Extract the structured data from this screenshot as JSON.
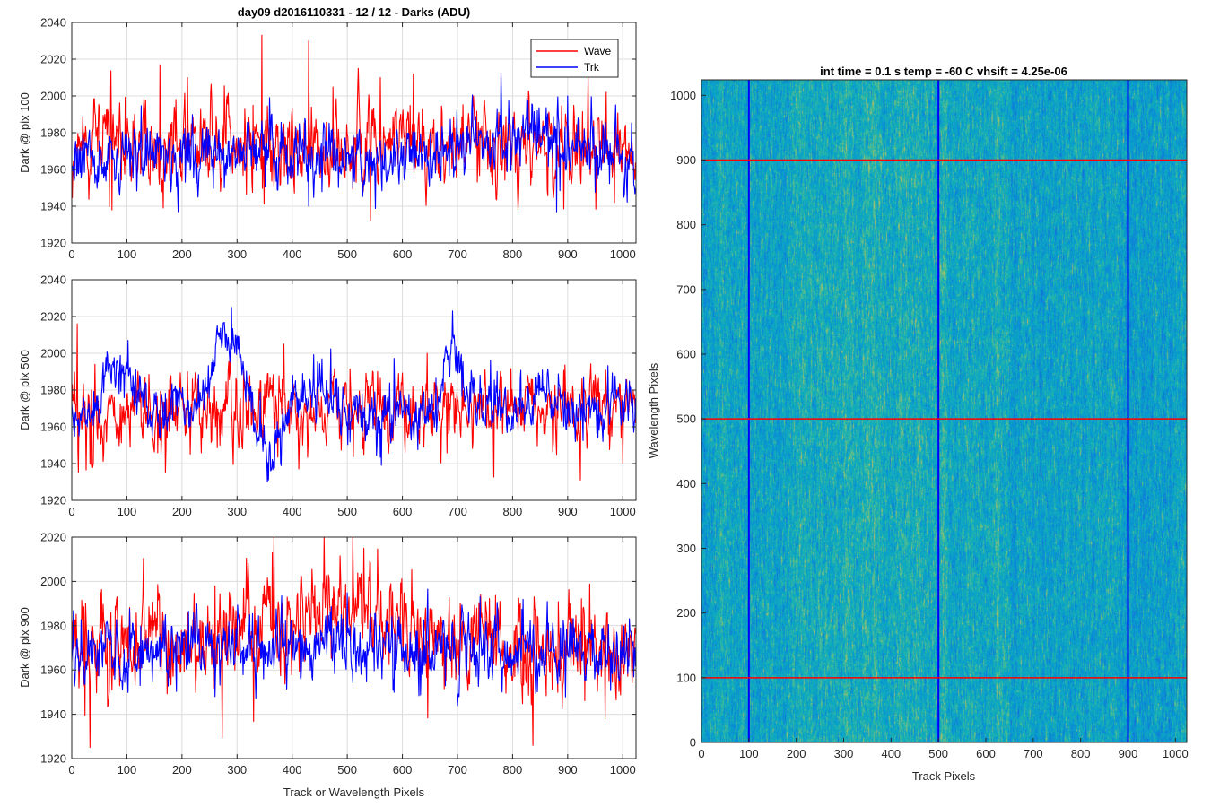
{
  "figure_title": "day09 d2016110331 - 12 / 12 - Darks (ADU)",
  "colors": {
    "wave": "#ff0000",
    "trk": "#0000ff",
    "grid": "#d9d9d9",
    "axis": "#262626"
  },
  "chart_data": [
    {
      "type": "line",
      "ylabel": "Dark @ pix 100",
      "xlim": [
        0,
        1024
      ],
      "ylim": [
        1920,
        2040
      ],
      "xticks": [
        0,
        100,
        200,
        300,
        400,
        500,
        600,
        700,
        800,
        900,
        1000
      ],
      "yticks": [
        1920,
        1940,
        1960,
        1980,
        2000,
        2020,
        2040
      ],
      "grid": true,
      "legend": "top-right",
      "series": [
        {
          "name": "Wave",
          "color": "#ff0000",
          "baseline": 1972,
          "noise_sd": 9,
          "peaks": [
            [
              160,
              2017
            ],
            [
              210,
              2010
            ],
            [
              345,
              2033
            ],
            [
              430,
              2030
            ],
            [
              520,
              2015
            ],
            [
              560,
              2010
            ],
            [
              620,
              2012
            ],
            [
              970,
              2002
            ]
          ],
          "dips": [
            [
              73,
              1938
            ],
            [
              985,
              1942
            ]
          ]
        },
        {
          "name": "Trk",
          "color": "#0000ff",
          "baseline": 1964,
          "noise_sd": 7,
          "trend": [
            [
              0,
              0
            ],
            [
              150,
              4
            ],
            [
              300,
              6
            ],
            [
              500,
              2
            ],
            [
              700,
              4
            ],
            [
              820,
              18
            ],
            [
              900,
              6
            ],
            [
              1024,
              4
            ]
          ],
          "peaks": [
            [
              845,
              1992
            ],
            [
              900,
              2000
            ]
          ],
          "dips": [
            [
              193,
              1937
            ],
            [
              430,
              1940
            ],
            [
              880,
              1937
            ]
          ]
        }
      ]
    },
    {
      "type": "line",
      "ylabel": "Dark @ pix 500",
      "xlim": [
        0,
        1024
      ],
      "ylim": [
        1920,
        2040
      ],
      "xticks": [
        0,
        100,
        200,
        300,
        400,
        500,
        600,
        700,
        800,
        900,
        1000
      ],
      "yticks": [
        1920,
        1940,
        1960,
        1980,
        2000,
        2020,
        2040
      ],
      "grid": true,
      "series": [
        {
          "name": "Wave",
          "color": "#ff0000",
          "baseline": 1969,
          "noise_sd": 8,
          "peaks": [
            [
              10,
              2016
            ],
            [
              385,
              2005
            ],
            [
              645,
              2000
            ],
            [
              470,
              2000
            ]
          ],
          "dips": [
            [
              170,
              1935
            ],
            [
              880,
              1945
            ],
            [
              1000,
              1940
            ]
          ]
        },
        {
          "name": "Trk",
          "color": "#0000ff",
          "baseline": 1966,
          "noise_sd": 6,
          "trend": [
            [
              0,
              0
            ],
            [
              40,
              2
            ],
            [
              70,
              30
            ],
            [
              100,
              20
            ],
            [
              140,
              4
            ],
            [
              230,
              4
            ],
            [
              270,
              40
            ],
            [
              300,
              38
            ],
            [
              330,
              0
            ],
            [
              360,
              -28
            ],
            [
              400,
              12
            ],
            [
              470,
              8
            ],
            [
              530,
              0
            ],
            [
              650,
              0
            ],
            [
              690,
              38
            ],
            [
              720,
              8
            ],
            [
              800,
              0
            ],
            [
              840,
              12
            ],
            [
              900,
              2
            ],
            [
              1024,
              6
            ]
          ],
          "peaks": [
            [
              290,
              2025
            ]
          ],
          "dips": [
            [
              355,
              1930
            ]
          ]
        }
      ]
    },
    {
      "type": "line",
      "ylabel": "Dark @ pix 900",
      "xlabel": "Track or Wavelength Pixels",
      "xlim": [
        0,
        1024
      ],
      "ylim": [
        1920,
        2020
      ],
      "xticks": [
        0,
        100,
        200,
        300,
        400,
        500,
        600,
        700,
        800,
        900,
        1000
      ],
      "yticks": [
        1920,
        1940,
        1960,
        1980,
        2000,
        2020
      ],
      "grid": true,
      "series": [
        {
          "name": "Wave",
          "color": "#ff0000",
          "baseline": 1970,
          "noise_sd": 9,
          "trend": [
            [
              0,
              0
            ],
            [
              250,
              4
            ],
            [
              350,
              12
            ],
            [
              500,
              16
            ],
            [
              650,
              8
            ],
            [
              800,
              0
            ],
            [
              1024,
              0
            ]
          ],
          "peaks": [
            [
              510,
              2020
            ],
            [
              530,
              2015
            ]
          ],
          "dips": [
            [
              33,
              1925
            ],
            [
              968,
              1938
            ]
          ]
        },
        {
          "name": "Trk",
          "color": "#0000ff",
          "baseline": 1967,
          "noise_sd": 6,
          "trend": [
            [
              0,
              0
            ],
            [
              170,
              4
            ],
            [
              500,
              3
            ],
            [
              1024,
              0
            ]
          ],
          "peaks": [
            [
              170,
              1985
            ]
          ],
          "dips": []
        }
      ]
    },
    {
      "type": "heatmap",
      "title": "int time = 0.1 s   temp = -60 C   vhsift = 4.25e-06",
      "xlabel": "Track Pixels",
      "ylabel": "Wavelength Pixels",
      "xlim": [
        0,
        1024
      ],
      "ylim": [
        0,
        1024
      ],
      "xticks": [
        0,
        100,
        200,
        300,
        400,
        500,
        600,
        700,
        800,
        900,
        1000
      ],
      "yticks": [
        0,
        100,
        200,
        300,
        400,
        500,
        600,
        700,
        800,
        900,
        1000
      ],
      "colormap": "parula",
      "vertical_lines": {
        "color": "#0000ff",
        "x": [
          100,
          500,
          900
        ]
      },
      "horizontal_lines": {
        "color": "#ff0000",
        "y": [
          100,
          500,
          900
        ]
      }
    }
  ]
}
